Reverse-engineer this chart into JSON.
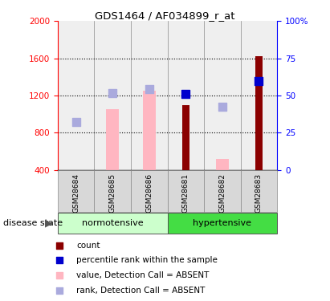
{
  "title": "GDS1464 / AF034899_r_at",
  "samples": [
    "GSM28684",
    "GSM28685",
    "GSM28686",
    "GSM28681",
    "GSM28682",
    "GSM28683"
  ],
  "ylim_left": [
    400,
    2000
  ],
  "ylim_right": [
    0,
    100
  ],
  "yticks_left": [
    400,
    800,
    1200,
    1600,
    2000
  ],
  "yticks_right": [
    0,
    25,
    50,
    75,
    100
  ],
  "count_values": [
    null,
    null,
    null,
    1100,
    null,
    1620
  ],
  "count_color": "#8B0000",
  "rank_values": [
    null,
    null,
    null,
    1220,
    null,
    1360
  ],
  "rank_color": "#0000CD",
  "absent_value_values": [
    null,
    1050,
    1250,
    null,
    520,
    null
  ],
  "absent_value_color": "#FFB6C1",
  "absent_rank_values": [
    920,
    1230,
    1270,
    null,
    1080,
    null
  ],
  "absent_rank_color": "#AAAADD",
  "legend_items": [
    {
      "label": "count",
      "color": "#8B0000",
      "marker": "s"
    },
    {
      "label": "percentile rank within the sample",
      "color": "#0000CD",
      "marker": "s"
    },
    {
      "label": "value, Detection Call = ABSENT",
      "color": "#FFB6C1",
      "marker": "s"
    },
    {
      "label": "rank, Detection Call = ABSENT",
      "color": "#AAAADD",
      "marker": "s"
    }
  ],
  "normotensive_color": "#CCFFCC",
  "hypertensive_color": "#44DD44",
  "sample_box_color": "#D8D8D8",
  "group_border_color": "#888888",
  "disease_state_label": "disease state",
  "grid_linestyle": ":",
  "grid_color": "black"
}
